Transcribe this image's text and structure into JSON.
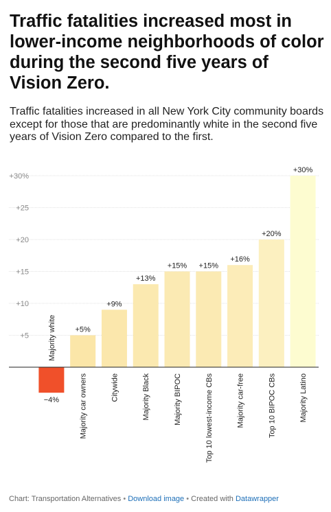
{
  "title": "Traffic fatalities increased most in lower-income neighborhoods of color during the second five years of Vision Zero.",
  "subtitle": "Traffic fatalities increased in all New York City community boards except for those that are predominantly white in the second five years of Vision Zero compared to the first.",
  "footer": {
    "source": "Chart: Transportation Alternatives",
    "separator": "•",
    "download": "Download image",
    "created_with": "Created with",
    "datawrapper": "Datawrapper"
  },
  "chart_data": {
    "type": "bar",
    "categories": [
      "Majority white",
      "Majority car owners",
      "Citywide",
      "Majority Black",
      "Majority BIPOC",
      "Top 10 lowest-income CBs",
      "Majority car-free",
      "Top 10 BIPOC CBs",
      "Majority Latino"
    ],
    "values": [
      -4,
      5,
      9,
      13,
      15,
      15,
      16,
      20,
      30
    ],
    "value_labels": [
      "−4%",
      "+5%",
      "+9%",
      "+13%",
      "+15%",
      "+15%",
      "+16%",
      "+20%",
      "+30%"
    ],
    "y_ticks": [
      5,
      10,
      15,
      20,
      25,
      30
    ],
    "y_tick_labels": [
      "+5",
      "+10",
      "+15",
      "+20",
      "+25",
      "+30%"
    ],
    "ylim": [
      -4,
      30
    ],
    "grid": true,
    "colors": {
      "negative": "#f0502a",
      "positive_scale": [
        "#fbe6a8",
        "#fbe6a8",
        "#fbe7ac",
        "#fbe9b0",
        "#fbeab3",
        "#fbeab3",
        "#fcecb8",
        "#fcf0c0",
        "#fdfcd0"
      ],
      "grid": "#e2e2e2",
      "baseline": "#222222"
    }
  }
}
